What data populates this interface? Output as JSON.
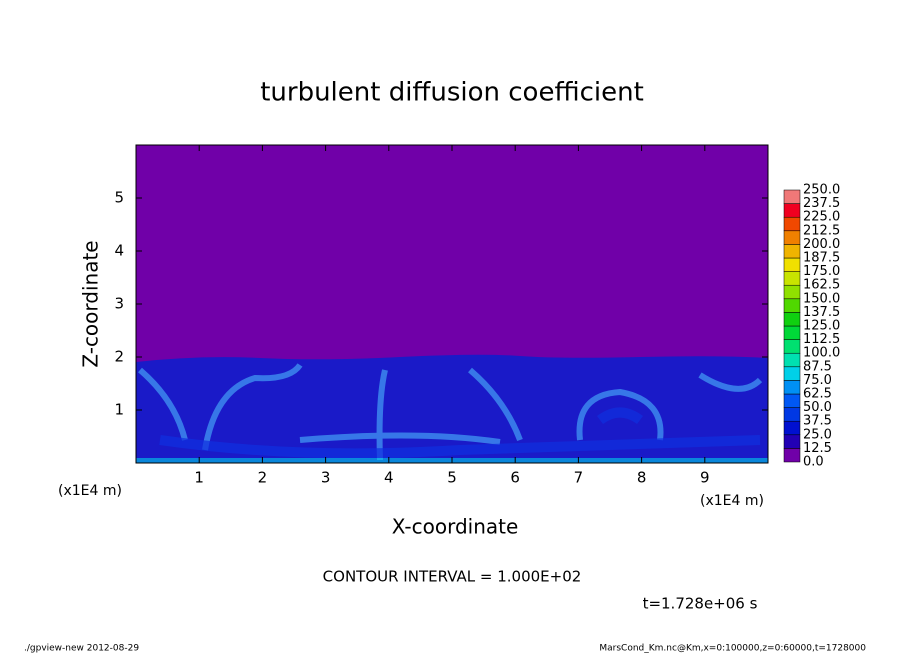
{
  "chart_data": {
    "type": "contour",
    "title": "turbulent diffusion coefficient",
    "xlabel": "X-coordinate",
    "ylabel": "Z-coordinate",
    "x_unit": "(x1E4 m)",
    "y_unit": "(x1E4 m)",
    "xlim": [
      0,
      10
    ],
    "xticks": [
      1,
      2,
      3,
      4,
      5,
      6,
      7,
      8,
      9
    ],
    "ylim": [
      0,
      6
    ],
    "yticks": [
      1,
      2,
      3,
      4,
      5
    ],
    "colorbar": {
      "levels": [
        {
          "value": 0,
          "label": "0.0"
        },
        {
          "value": 12.5,
          "label": "12.5"
        },
        {
          "value": 25,
          "label": "25.0"
        },
        {
          "value": 37.5,
          "label": "37.5"
        },
        {
          "value": 50,
          "label": "50.0"
        },
        {
          "value": 62.5,
          "label": "62.5"
        },
        {
          "value": 75,
          "label": "75.0"
        },
        {
          "value": 87.5,
          "label": "87.5"
        },
        {
          "value": 100,
          "label": "100.0"
        },
        {
          "value": 112.5,
          "label": "112.5"
        },
        {
          "value": 125,
          "label": "125.0"
        },
        {
          "value": 137.5,
          "label": "137.5"
        },
        {
          "value": 150,
          "label": "150.0"
        },
        {
          "value": 162.5,
          "label": "162.5"
        },
        {
          "value": 175,
          "label": "175.0"
        },
        {
          "value": 187.5,
          "label": "187.5"
        },
        {
          "value": 200,
          "label": "200.0"
        },
        {
          "value": 212.5,
          "label": "212.5"
        },
        {
          "value": 225,
          "label": "225.0"
        },
        {
          "value": 237.5,
          "label": "237.5"
        },
        {
          "value": 250,
          "label": "250.0"
        }
      ],
      "colors": [
        "#7000a8",
        "#2200b4",
        "#0010d0",
        "#0038e4",
        "#0058f4",
        "#0090f4",
        "#00d0e8",
        "#00e0b0",
        "#00e070",
        "#00d838",
        "#10d010",
        "#50d800",
        "#90e000",
        "#c8e400",
        "#f0e000",
        "#f0b400",
        "#f08000",
        "#f04800",
        "#f00020",
        "#f07878"
      ]
    },
    "annotations": [
      "CONTOUR INTERVAL = 1.000E+02",
      "t=1.728e+06 s",
      "./gpview-new  2012-08-29",
      "MarsCond_Km.nc@Km,x=0:100000,z=0:60000,t=1728000"
    ]
  }
}
